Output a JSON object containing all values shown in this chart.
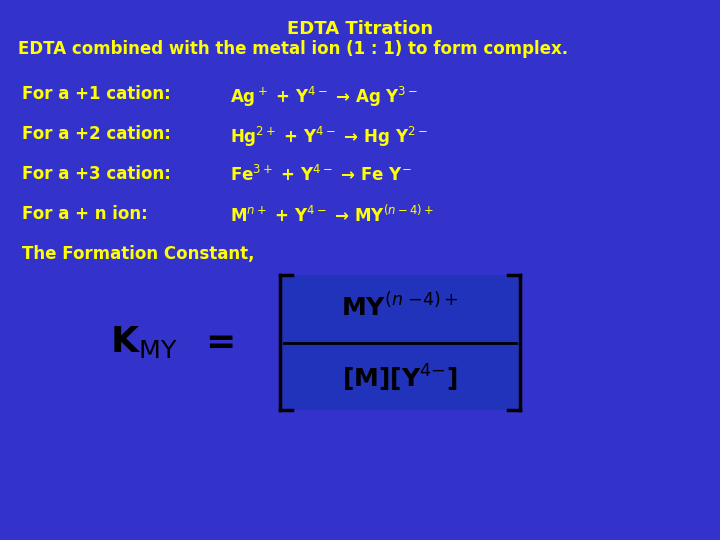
{
  "bg_color": "#3333CC",
  "box_color": "#2244BB",
  "title_text": "EDTA Titration",
  "subtitle_text": "EDTA combined with the metal ion (1 : 1) to form complex.",
  "yellow": "#FFFF00",
  "black": "#000000",
  "figsize": [
    7.2,
    5.4
  ],
  "dpi": 100,
  "rows": [
    {
      "label": "For a +1 cation:",
      "eq": "Ag$^+$ + Y$^{4-}$ → Ag Y$^{3-}$"
    },
    {
      "label": "For a +2 cation:",
      "eq": "Hg$^{2+}$ + Y$^{4-}$ → Hg Y$^{2-}$"
    },
    {
      "label": "For a +3 cation:",
      "eq": "Fe$^{3+}$ + Y$^{4-}$ → Fe Y$^{-}$"
    },
    {
      "label": "For a + n ion:",
      "eq": "M$^{n+}$ + Y$^{4-}$ → MY$^{(n − 4)+}$"
    }
  ],
  "formation_text": "The Formation Constant,"
}
